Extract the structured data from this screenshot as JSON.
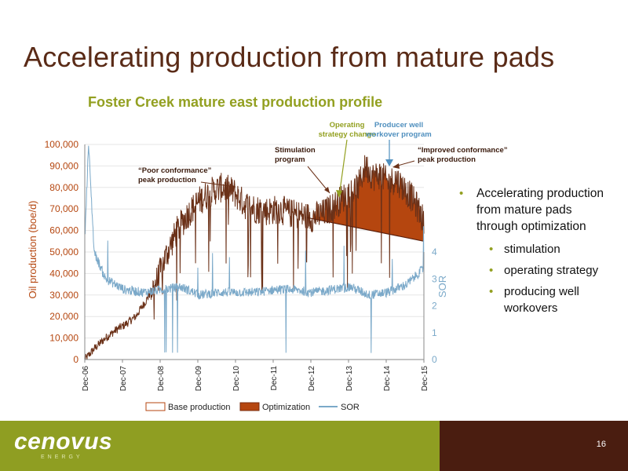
{
  "slide": {
    "title": "Accelerating production from mature pads",
    "page_number": "16"
  },
  "logo": {
    "text": "cenovus",
    "subtext": "ENERGY"
  },
  "bullets": {
    "main": "Accelerating production from mature pads through optimization",
    "sub": [
      "stimulation",
      "operating strategy",
      "producing well workovers"
    ]
  },
  "colors": {
    "title": "#5a2b17",
    "chart_title": "#93a021",
    "production_line": "#6b3118",
    "optimization_fill": "#b5460f",
    "sor_line": "#7ba9c9",
    "footer_green": "#8f9e22",
    "footer_brown": "#4a1d10",
    "annotation_green": "#93a021",
    "annotation_blue": "#4f8fbe"
  },
  "chart_data": {
    "type": "line",
    "title": "Foster Creek mature east production profile",
    "ylabel": "Oil production (boe/d)",
    "y2label": "SOR",
    "ylim": [
      0,
      100000
    ],
    "y2lim": [
      0,
      8
    ],
    "xlim": [
      "2006-12",
      "2015-12"
    ],
    "y_ticks": [
      "0",
      "10,000",
      "20,000",
      "30,000",
      "40,000",
      "50,000",
      "60,000",
      "70,000",
      "80,000",
      "90,000",
      "100,000"
    ],
    "y2_ticks": [
      "0",
      "1",
      "2",
      "3",
      "4"
    ],
    "x_ticks": [
      "Dec-06",
      "Dec-07",
      "Dec-08",
      "Dec-09",
      "Dec-10",
      "Dec-11",
      "Dec-12",
      "Dec-13",
      "Dec-14",
      "Dec-15"
    ],
    "legend": [
      "Base production",
      "Optimization",
      "SOR"
    ],
    "legend_position": "bottom",
    "series": [
      {
        "name": "Oil production",
        "x": [
          2006.95,
          2007.2,
          2007.5,
          2007.8,
          2008.0,
          2008.3,
          2008.6,
          2008.9,
          2009.1,
          2009.4,
          2009.7,
          2010.0,
          2010.3,
          2010.6,
          2010.9,
          2011.2,
          2011.5,
          2011.8,
          2012.1,
          2012.4,
          2012.7,
          2013.0,
          2013.3,
          2013.6,
          2013.8,
          2014.0,
          2014.2,
          2014.4,
          2014.6,
          2014.8,
          2015.0,
          2015.2,
          2015.4,
          2015.6,
          2015.8,
          2015.95
        ],
        "y": [
          0,
          5000,
          10000,
          14000,
          16000,
          20000,
          28000,
          38000,
          48000,
          60000,
          68000,
          74000,
          78000,
          80000,
          78000,
          72000,
          70000,
          69000,
          70000,
          68000,
          67000,
          66000,
          68000,
          72000,
          75000,
          78000,
          80000,
          90000,
          85000,
          86000,
          82000,
          84000,
          80000,
          76000,
          70000,
          64000
        ]
      },
      {
        "name": "Base production",
        "x": [
          2012.85,
          2015.95
        ],
        "y": [
          66000,
          55000
        ]
      },
      {
        "name": "SOR",
        "x": [
          2006.95,
          2007.05,
          2007.2,
          2007.5,
          2008.0,
          2008.5,
          2009.0,
          2009.5,
          2010.0,
          2010.5,
          2011.0,
          2011.5,
          2012.0,
          2012.5,
          2013.0,
          2013.5,
          2014.0,
          2014.5,
          2015.0,
          2015.5,
          2015.95
        ],
        "y": [
          4.5,
          8.0,
          4.0,
          3.0,
          2.6,
          2.5,
          2.6,
          2.7,
          2.4,
          2.5,
          2.5,
          2.5,
          2.6,
          2.6,
          2.5,
          2.6,
          2.7,
          2.4,
          2.5,
          2.8,
          3.4
        ]
      }
    ],
    "annotations": [
      {
        "text": "“Poor conformance” peak production",
        "x": 2010.6,
        "y": 80000
      },
      {
        "text": "Stimulation program",
        "x": 2012.75,
        "y": 66000
      },
      {
        "text": "Operating strategy change",
        "x": 2013.45,
        "y": 67000
      },
      {
        "text": "Producer well workover program",
        "x": 2014.2,
        "y": 91000
      },
      {
        "text": "“Improved conformance” peak production",
        "x": 2014.35,
        "y": 90000
      }
    ]
  }
}
